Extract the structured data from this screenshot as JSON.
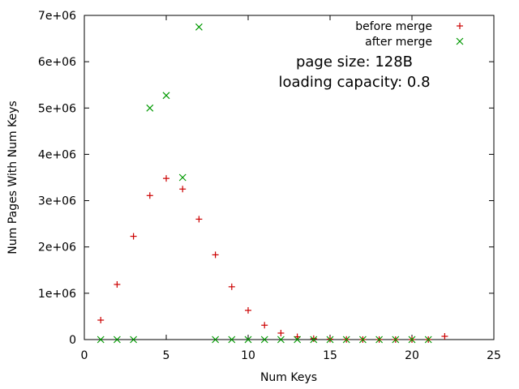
{
  "chart_data": {
    "type": "scatter",
    "title": "",
    "xlabel": "Num Keys",
    "ylabel": "Num Pages With Num Keys",
    "xlim": [
      0,
      25
    ],
    "ylim": [
      0,
      7000000
    ],
    "x_ticks": [
      0,
      5,
      10,
      15,
      20,
      25
    ],
    "y_ticks": [
      {
        "value": 0,
        "label": "0"
      },
      {
        "value": 1000000,
        "label": "1e+06"
      },
      {
        "value": 2000000,
        "label": "2e+06"
      },
      {
        "value": 3000000,
        "label": "3e+06"
      },
      {
        "value": 4000000,
        "label": "4e+06"
      },
      {
        "value": 5000000,
        "label": "5e+06"
      },
      {
        "value": 6000000,
        "label": "6e+06"
      },
      {
        "value": 7000000,
        "label": "7e+06"
      }
    ],
    "grid": false,
    "legend_position": "top-right",
    "annotations": [
      "page size: 128B",
      "loading capacity: 0.8"
    ],
    "series": [
      {
        "name": "before merge",
        "marker": "plus",
        "color": "#cc0000",
        "points": [
          [
            1,
            420000
          ],
          [
            2,
            1190000
          ],
          [
            3,
            2230000
          ],
          [
            4,
            3110000
          ],
          [
            5,
            3480000
          ],
          [
            6,
            3250000
          ],
          [
            7,
            2600000
          ],
          [
            8,
            1830000
          ],
          [
            9,
            1140000
          ],
          [
            10,
            630000
          ],
          [
            11,
            310000
          ],
          [
            12,
            140000
          ],
          [
            13,
            60000
          ],
          [
            14,
            20000
          ],
          [
            15,
            8000
          ],
          [
            16,
            3000
          ],
          [
            17,
            1000
          ],
          [
            18,
            500
          ],
          [
            19,
            200
          ],
          [
            20,
            100
          ],
          [
            21,
            50
          ],
          [
            22,
            70000
          ]
        ]
      },
      {
        "name": "after merge",
        "marker": "cross",
        "color": "#009900",
        "points": [
          [
            1,
            0
          ],
          [
            2,
            0
          ],
          [
            3,
            0
          ],
          [
            4,
            5000000
          ],
          [
            5,
            5270000
          ],
          [
            6,
            3500000
          ],
          [
            7,
            6750000
          ],
          [
            8,
            0
          ],
          [
            9,
            0
          ],
          [
            10,
            0
          ],
          [
            11,
            0
          ],
          [
            12,
            0
          ],
          [
            13,
            0
          ],
          [
            14,
            0
          ],
          [
            15,
            0
          ],
          [
            16,
            0
          ],
          [
            17,
            0
          ],
          [
            18,
            0
          ],
          [
            19,
            0
          ],
          [
            20,
            0
          ],
          [
            21,
            0
          ]
        ]
      }
    ]
  }
}
